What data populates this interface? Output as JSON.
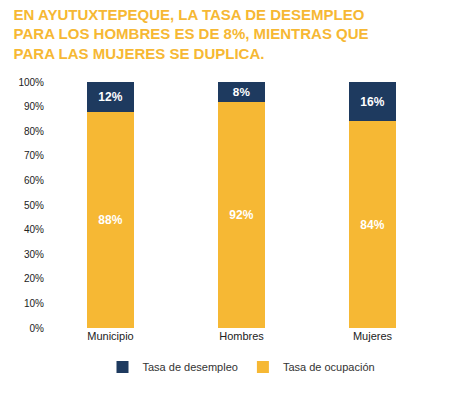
{
  "chart_data": {
    "type": "bar",
    "title": "EN AYUTUXTEPEQUE, LA TASA DE DESEMPLEO PARA LOS HOMBRES ES DE 8%, MIENTRAS QUE PARA LAS MUJERES SE DUPLICA.",
    "categories": [
      "Municipio",
      "Hombres",
      "Mujeres"
    ],
    "series": [
      {
        "name": "Tasa de ocupación",
        "color": "#F6B834",
        "values": [
          88,
          92,
          84
        ],
        "value_labels": [
          "88%",
          "92%",
          "84%"
        ]
      },
      {
        "name": "Tasa de desempleo",
        "color": "#1E3A5F",
        "values": [
          12,
          8,
          16
        ],
        "value_labels": [
          "12%",
          "8%",
          "16%"
        ]
      }
    ],
    "ylim": [
      0,
      100
    ],
    "yticks": [
      {
        "value": 0,
        "label": "0%"
      },
      {
        "value": 10,
        "label": "10%"
      },
      {
        "value": 20,
        "label": "20%"
      },
      {
        "value": 30,
        "label": "30%"
      },
      {
        "value": 40,
        "label": "40%"
      },
      {
        "value": 50,
        "label": "50%"
      },
      {
        "value": 60,
        "label": "60%"
      },
      {
        "value": 70,
        "label": "70%"
      },
      {
        "value": 80,
        "label": "80%"
      },
      {
        "value": 90,
        "label": "90%"
      },
      {
        "value": 100,
        "label": "100%"
      }
    ],
    "stacked": true,
    "data_labels": true,
    "grid": false,
    "legend": "bottom"
  }
}
